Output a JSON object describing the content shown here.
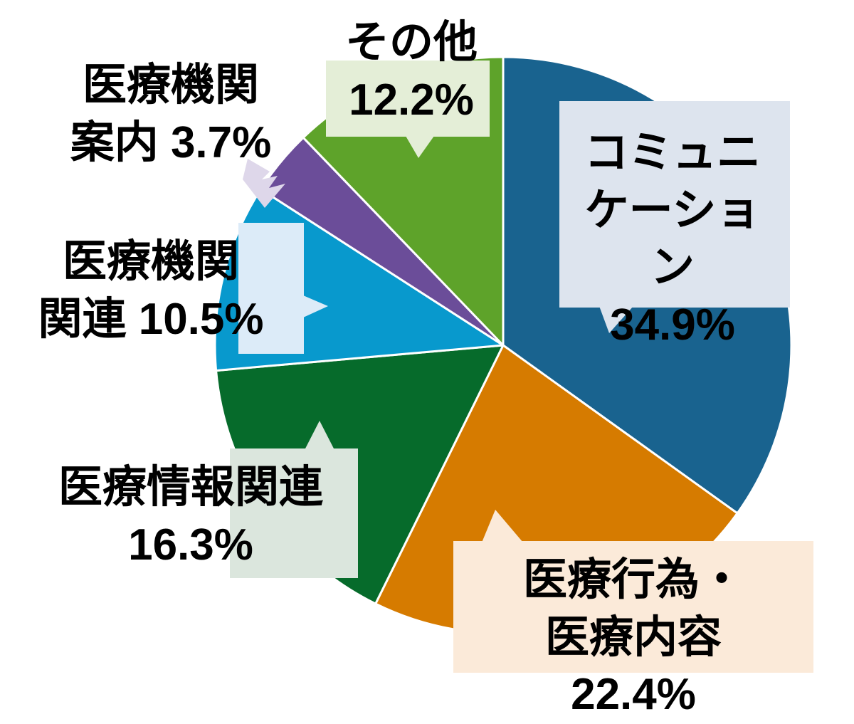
{
  "chart_data": {
    "type": "pie",
    "title": "",
    "unit": "%",
    "start_angle_deg": 0,
    "direction": "clockwise",
    "legend": "callout-labels-on-chart",
    "slices": [
      {
        "id": "communication",
        "label": "コミュニケーション",
        "value": 34.9,
        "color": "#19638f",
        "callout_color": "#dde4ee"
      },
      {
        "id": "medical_acts",
        "label": "医療行為・医療内容",
        "value": 22.4,
        "color": "#d67b00",
        "callout_color": "#fbead9"
      },
      {
        "id": "medical_info",
        "label": "医療情報関連",
        "value": 16.3,
        "color": "#066b2b",
        "callout_color": "#dbe6dd"
      },
      {
        "id": "medical_inst_related",
        "label": "医療機関関連",
        "value": 10.5,
        "color": "#0899cd",
        "callout_color": "#dcebf8"
      },
      {
        "id": "medical_inst_guide",
        "label": "医療機関案内",
        "value": 3.7,
        "color": "#6b4d99",
        "callout_color": "#ded7ea"
      },
      {
        "id": "others",
        "label": "その他",
        "value": 12.2,
        "color": "#5ea32a",
        "callout_color": "#e4eed7"
      }
    ]
  },
  "labels": {
    "communication": "コミュニ\nケーション\n34.9%",
    "medical_acts": "医療行為・\n医療内容 22.4%",
    "medical_info": "医療情報関連\n16.3%",
    "medical_inst_related": "医療機関\n関連 10.5%",
    "medical_inst_guide": "医療機関\n案内 3.7%",
    "others": "その他\n12.2%"
  },
  "colors": {
    "slice_border": "#ffffff",
    "text": "#000000",
    "background": "#ffffff"
  }
}
